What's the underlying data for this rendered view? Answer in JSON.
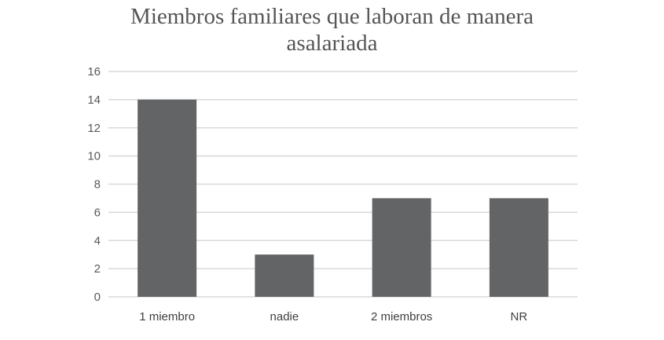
{
  "chart_data": {
    "type": "bar",
    "title_lines": [
      "Miembros familiares que laboran de manera",
      "asalariada"
    ],
    "categories": [
      "1  miembro",
      "nadie",
      "2 miembros",
      "NR"
    ],
    "values": [
      14,
      3,
      7,
      7
    ],
    "ylim": [
      0,
      16
    ],
    "yticks": [
      "0",
      "2",
      "4",
      "6",
      "8",
      "10",
      "12",
      "14",
      "16"
    ],
    "grid": true,
    "bar_color": "#636466",
    "grid_color": "#d9d9d9"
  }
}
